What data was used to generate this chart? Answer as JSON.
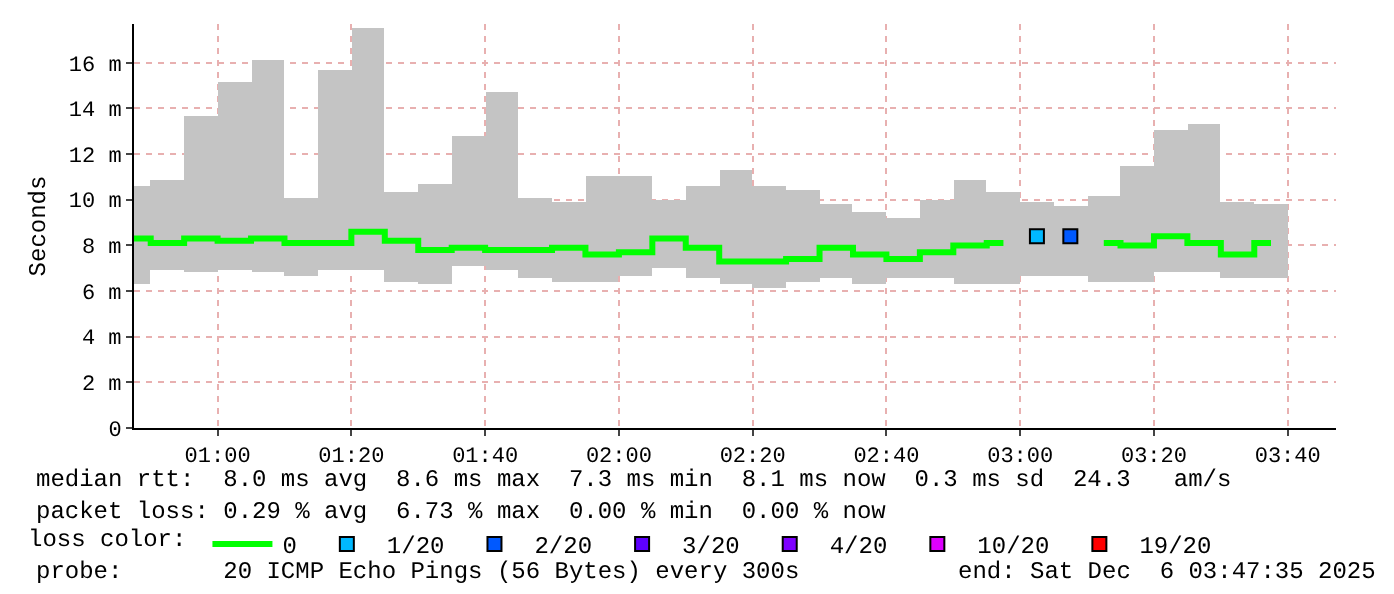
{
  "chart_data": {
    "type": "bar",
    "ylabel": "Seconds",
    "legend_title": "loss color:",
    "x": [
      0.7917,
      0.875,
      0.9583,
      1.0417,
      1.125,
      1.2083,
      1.2917,
      1.375,
      1.4583,
      1.5417,
      1.625,
      1.7083,
      1.7917,
      1.875,
      1.9583,
      2.0417,
      2.125,
      2.2083,
      2.2917,
      2.375,
      2.4583,
      2.5417,
      2.625,
      2.7083,
      2.7917,
      2.875,
      2.9583,
      3.0417,
      3.125,
      3.2083,
      3.2917,
      3.375,
      3.4583,
      3.5417,
      3.625
    ],
    "series": [
      {
        "color": "#c4c4c4",
        "base": [
          6.3,
          6.9,
          6.8,
          6.9,
          6.8,
          6.7,
          6.9,
          6.9,
          6.4,
          6.3,
          7.1,
          6.9,
          6.6,
          6.4,
          6.4,
          6.7,
          7.0,
          6.6,
          6.3,
          6.1,
          6.4,
          6.6,
          6.3,
          6.6,
          6.6,
          6.3,
          6.3,
          6.7,
          6.7,
          6.4,
          6.4,
          6.8,
          6.8,
          6.6,
          6.6
        ],
        "values": [
          4.3,
          4.0,
          6.9,
          8.3,
          9.3,
          3.4,
          8.8,
          10.6,
          3.9,
          4.4,
          5.7,
          7.8,
          3.5,
          3.5,
          4.6,
          4.3,
          3.0,
          4.0,
          5.0,
          4.5,
          4.0,
          3.2,
          3.2,
          2.6,
          3.4,
          4.6,
          4.0,
          3.2,
          3.0,
          3.8,
          5.1,
          6.3,
          6.5,
          3.3,
          3.2
        ]
      },
      {
        "type": "step",
        "name": "0",
        "color": "#00ff00",
        "values": [
          8.3,
          8.1,
          8.3,
          8.2,
          8.3,
          8.1,
          8.1,
          8.6,
          8.2,
          7.8,
          7.9,
          7.8,
          7.8,
          7.9,
          7.6,
          7.7,
          8.3,
          7.9,
          7.3,
          7.3,
          7.4,
          7.9,
          7.6,
          7.4,
          7.7,
          8.0,
          8.1,
          null,
          null,
          8.1,
          8.0,
          8.4,
          8.1,
          7.6,
          8.1
        ]
      },
      {
        "type": "scatter",
        "marker": "square",
        "name": "1/20",
        "color": "#00b8ff",
        "x": [
          3.0417
        ],
        "values": [
          8.4
        ]
      },
      {
        "type": "scatter",
        "marker": "square",
        "name": "2/20",
        "color": "#0059ff",
        "x": [
          3.125
        ],
        "values": [
          8.4
        ]
      },
      {
        "type": "scatter",
        "marker": "square",
        "name": "3/20",
        "color": "#5e00ff",
        "values": [
          null,
          null,
          null,
          null,
          null,
          null,
          null,
          null,
          null,
          null,
          null,
          null,
          null,
          null,
          null,
          null,
          null,
          null,
          null,
          null,
          null,
          null,
          null,
          null,
          null,
          null,
          null,
          null,
          null,
          null,
          null,
          null,
          null,
          null,
          null
        ]
      },
      {
        "type": "scatter",
        "marker": "square",
        "name": "4/20",
        "color": "#7e00ff",
        "values": [
          null,
          null,
          null,
          null,
          null,
          null,
          null,
          null,
          null,
          null,
          null,
          null,
          null,
          null,
          null,
          null,
          null,
          null,
          null,
          null,
          null,
          null,
          null,
          null,
          null,
          null,
          null,
          null,
          null,
          null,
          null,
          null,
          null,
          null,
          null
        ]
      },
      {
        "type": "scatter",
        "marker": "square",
        "name": "10/20",
        "color": "#dd00ff",
        "values": [
          null,
          null,
          null,
          null,
          null,
          null,
          null,
          null,
          null,
          null,
          null,
          null,
          null,
          null,
          null,
          null,
          null,
          null,
          null,
          null,
          null,
          null,
          null,
          null,
          null,
          null,
          null,
          null,
          null,
          null,
          null,
          null,
          null,
          null,
          null
        ]
      },
      {
        "type": "scatter",
        "marker": "square",
        "name": "19/20",
        "color": "#ff0000",
        "values": [
          null,
          null,
          null,
          null,
          null,
          null,
          null,
          null,
          null,
          null,
          null,
          null,
          null,
          null,
          null,
          null,
          null,
          null,
          null,
          null,
          null,
          null,
          null,
          null,
          null,
          null,
          null,
          null,
          null,
          null,
          null,
          null,
          null,
          null,
          null
        ]
      }
    ],
    "xlim": [
      0.7917,
      3.787
    ],
    "xticks": [
      {
        "value": 1,
        "label": "01:00"
      },
      {
        "value": 1.3333,
        "label": "01:20"
      },
      {
        "value": 1.6667,
        "label": "01:40"
      },
      {
        "value": 2,
        "label": "02:00"
      },
      {
        "value": 2.3333,
        "label": "02:20"
      },
      {
        "value": 2.6667,
        "label": "02:40"
      },
      {
        "value": 3,
        "label": "03:00"
      },
      {
        "value": 3.3333,
        "label": "03:20"
      },
      {
        "value": 3.6667,
        "label": "03:40"
      }
    ],
    "ylim": [
      0,
      17.7
    ],
    "yticks": [
      0,
      {
        "value": 2,
        "label": "2 m"
      },
      {
        "value": 4,
        "label": "4 m"
      },
      {
        "value": 6,
        "label": "6 m"
      },
      {
        "value": 8,
        "label": "8 m"
      },
      {
        "value": 10,
        "label": "10 m"
      },
      {
        "value": 12,
        "label": "12 m"
      },
      {
        "value": 14,
        "label": "14 m"
      },
      {
        "value": 16,
        "label": "16 m"
      }
    ],
    "grid": true,
    "legend": "bottom",
    "annotations": [
      "median rtt:  8.0 ms avg  8.6 ms max  7.3 ms min  8.1 ms now  0.3 ms sd  24.3   am/s",
      "packet loss: 0.29 % avg  6.73 % max  0.00 % min  0.00 % now",
      "probe:       20 ICMP Echo Pings (56 Bytes) every 300s",
      "end: Sat Dec  6 03:47:35 2025"
    ]
  }
}
